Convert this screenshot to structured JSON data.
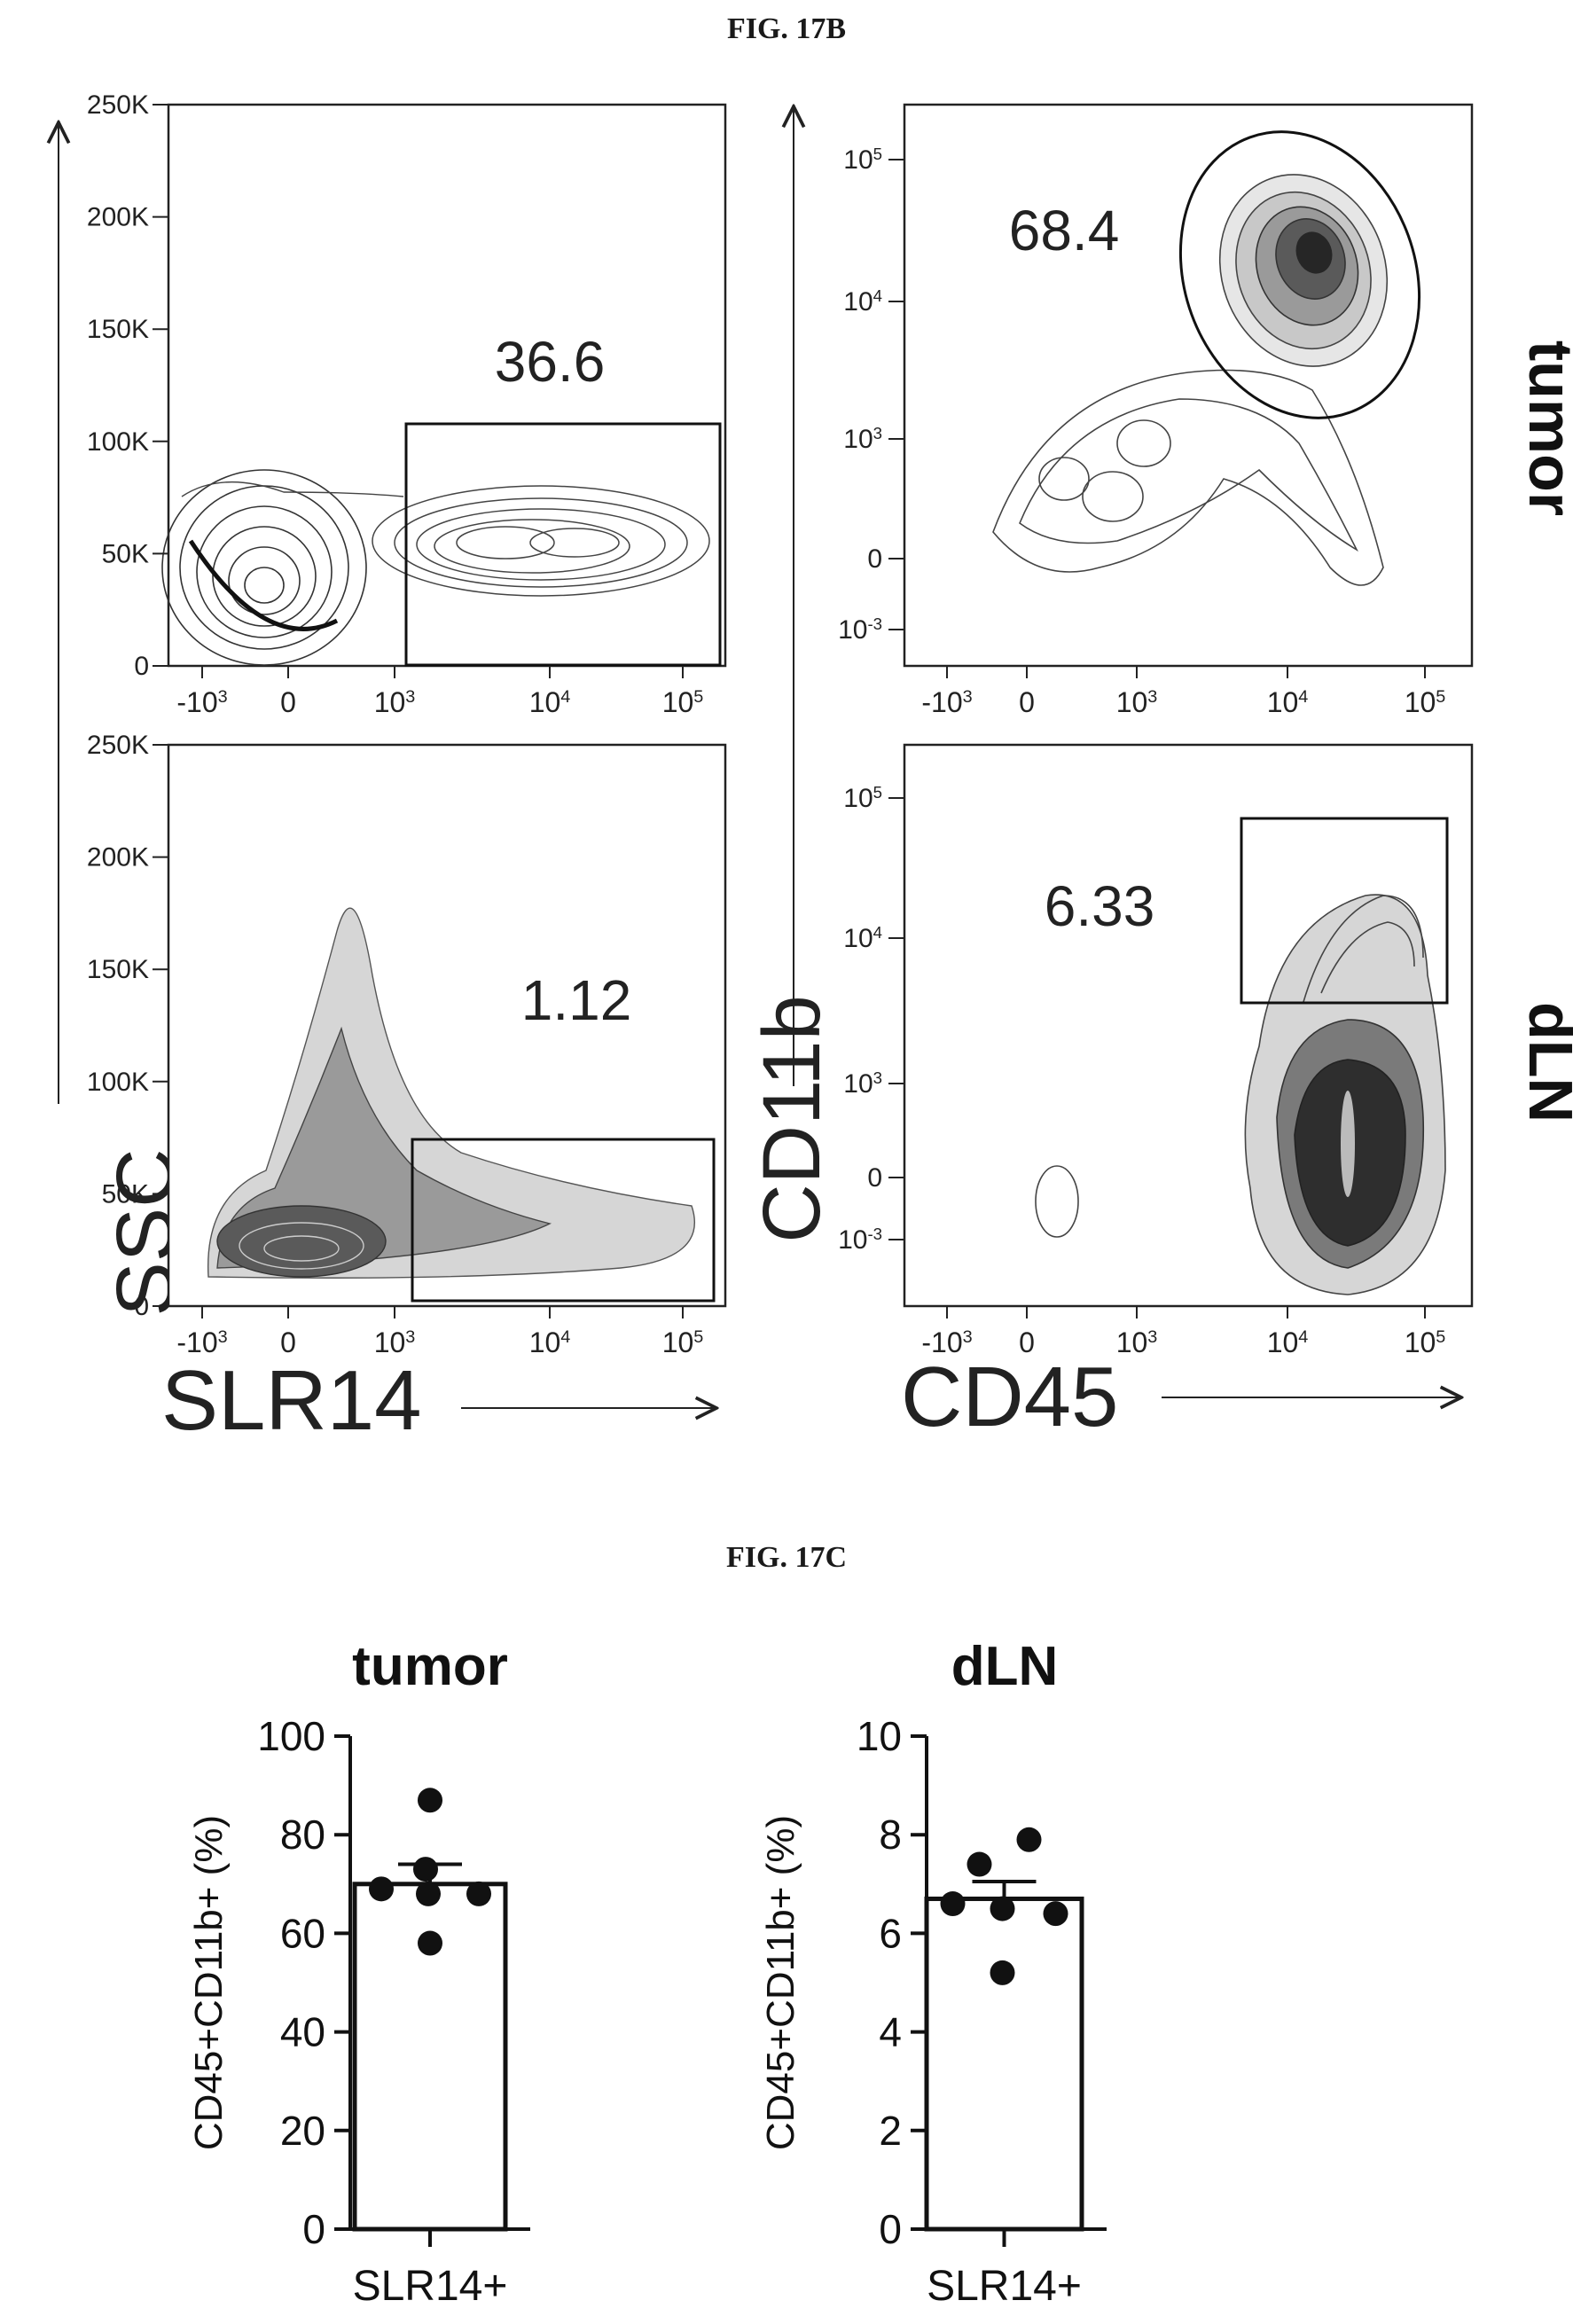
{
  "figure_b": {
    "label": "FIG. 17B",
    "panels": [
      {
        "gate_value": "36.6"
      },
      {
        "gate_value": "68.4"
      },
      {
        "gate_value": "1.12"
      },
      {
        "gate_value": "6.33"
      }
    ],
    "row_labels": [
      "tumor",
      "dLN"
    ],
    "left_axis": {
      "x_label": "SLR14",
      "y_label": "SSC",
      "y_ticks": [
        "250K",
        "200K",
        "150K",
        "100K",
        "50K",
        "0"
      ],
      "x_ticks": [
        {
          "base": "-10",
          "exp": "3"
        },
        {
          "base": "0",
          "exp": ""
        },
        {
          "base": "10",
          "exp": "3"
        },
        {
          "base": "10",
          "exp": "4"
        },
        {
          "base": "10",
          "exp": "5"
        }
      ]
    },
    "right_axis": {
      "x_label": "CD45",
      "y_label": "CD11b",
      "y_ticks": [
        {
          "base": "10",
          "exp": "5"
        },
        {
          "base": "10",
          "exp": "4"
        },
        {
          "base": "10",
          "exp": "3"
        },
        {
          "base": "0",
          "exp": ""
        },
        {
          "base": "10",
          "exp": "-3"
        }
      ],
      "x_ticks": [
        {
          "base": "-10",
          "exp": "3"
        },
        {
          "base": "0",
          "exp": ""
        },
        {
          "base": "10",
          "exp": "3"
        },
        {
          "base": "10",
          "exp": "4"
        },
        {
          "base": "10",
          "exp": "5"
        }
      ]
    }
  },
  "figure_c": {
    "label": "FIG. 17C"
  },
  "chart_data": [
    {
      "type": "bar",
      "title": "tumor",
      "categories": [
        "SLR14+"
      ],
      "values": [
        70
      ],
      "error": 4,
      "points": [
        87,
        73,
        69,
        68,
        68,
        58
      ],
      "ylabel": "CD45+CD11b+ (%)",
      "ylim": [
        0,
        100
      ],
      "yticks": [
        0,
        20,
        40,
        60,
        80,
        100
      ]
    },
    {
      "type": "bar",
      "title": "dLN",
      "categories": [
        "SLR14+"
      ],
      "values": [
        6.7
      ],
      "error": 0.35,
      "points": [
        7.9,
        7.4,
        6.6,
        6.4,
        6.5,
        5.2
      ],
      "ylabel": "CD45+CD11b+ (%)",
      "ylim": [
        0,
        10
      ],
      "yticks": [
        0,
        2,
        4,
        6,
        8,
        10
      ]
    }
  ]
}
